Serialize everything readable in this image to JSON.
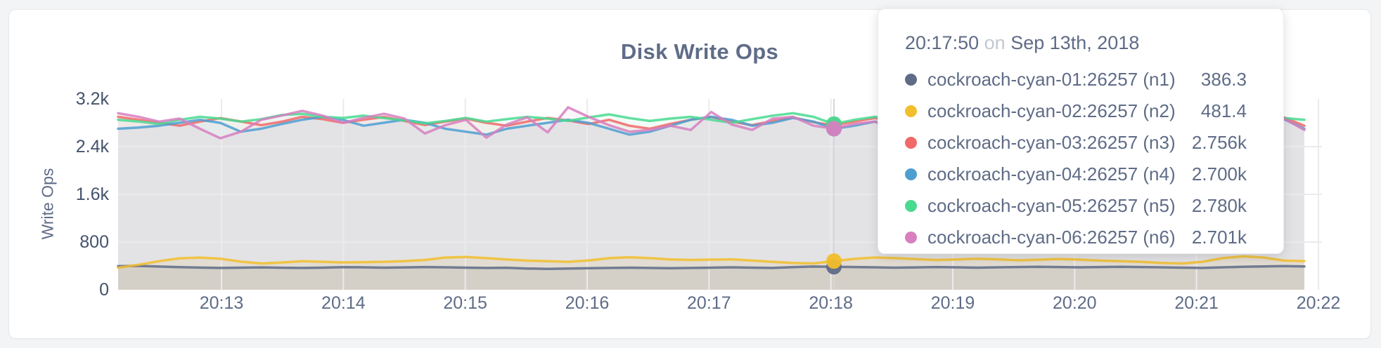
{
  "card": {
    "title": "Disk Write Ops"
  },
  "chart_data": {
    "type": "line",
    "title": "Disk Write Ops",
    "xlabel": "",
    "ylabel": "Write Ops",
    "ylim": [
      0,
      3200
    ],
    "grid": true,
    "legend_position": "tooltip-overlay",
    "y_ticks": [
      0,
      800,
      1600,
      2400,
      3200
    ],
    "y_tick_labels": [
      "0",
      "800",
      "1.6k",
      "2.4k",
      "3.2k"
    ],
    "x_tick_labels": [
      "20:13",
      "20:14",
      "20:15",
      "20:16",
      "20:17",
      "20:18",
      "20:19",
      "20:20",
      "20:21",
      "20:22"
    ],
    "x_start": "20:12:00",
    "x_interval_seconds": 10,
    "hover": {
      "index": 35,
      "time": "20:17:50",
      "date": "Sep 13th, 2018",
      "values": [
        386.3,
        481.4,
        2756,
        2700,
        2780,
        2701
      ]
    },
    "series": [
      {
        "name": "cockroach-cyan-01:26257 (n1)",
        "color": "#5F6C87",
        "values": [
          395,
          400,
          390,
          380,
          372,
          366,
          371,
          375,
          370,
          366,
          371,
          380,
          376,
          371,
          375,
          381,
          376,
          371,
          366,
          370,
          356,
          351,
          356,
          361,
          366,
          371,
          366,
          361,
          366,
          371,
          376,
          371,
          366,
          380,
          390,
          386.3,
          381,
          376,
          371,
          375,
          381,
          376,
          371,
          376,
          381,
          386,
          381,
          376,
          381,
          386,
          381,
          376,
          371,
          366,
          376,
          386,
          391,
          396,
          391
        ]
      },
      {
        "name": "cockroach-cyan-02:26257 (n2)",
        "color": "#F2BE2C",
        "values": [
          370,
          420,
          480,
          528,
          540,
          521,
          472,
          441,
          458,
          480,
          470,
          459,
          464,
          470,
          481,
          500,
          541,
          551,
          530,
          509,
          490,
          479,
          470,
          491,
          530,
          546,
          531,
          509,
          500,
          506,
          510,
          490,
          470,
          450,
          441,
          481.4,
          519,
          541,
          530,
          514,
          500,
          509,
          520,
          511,
          495,
          505,
          516,
          506,
          490,
          480,
          470,
          451,
          441,
          470,
          530,
          560,
          541,
          490,
          481
        ]
      },
      {
        "name": "cockroach-cyan-03:26257 (n3)",
        "color": "#F16969",
        "values": [
          2900,
          2852,
          2801,
          2750,
          2820,
          2879,
          2822,
          2760,
          2819,
          2900,
          2861,
          2800,
          2850,
          2899,
          2831,
          2762,
          2820,
          2871,
          2800,
          2751,
          2820,
          2881,
          2840,
          2779,
          2850,
          2750,
          2700,
          2781,
          2851,
          2899,
          2820,
          2760,
          2831,
          2890,
          2810,
          2756,
          2820,
          2879,
          2821,
          2750,
          2800,
          2861,
          2800,
          2741,
          2801,
          2870,
          2820,
          2761,
          2800,
          2851,
          2800,
          2750,
          2811,
          2870,
          2899,
          2820,
          2761,
          2890,
          2750
        ]
      },
      {
        "name": "cockroach-cyan-04:26257 (n4)",
        "color": "#4E9FD1",
        "values": [
          2700,
          2721,
          2750,
          2800,
          2851,
          2799,
          2650,
          2701,
          2780,
          2851,
          2900,
          2849,
          2750,
          2801,
          2850,
          2799,
          2700,
          2651,
          2601,
          2700,
          2751,
          2800,
          2850,
          2799,
          2700,
          2601,
          2650,
          2750,
          2851,
          2900,
          2849,
          2750,
          2800,
          2881,
          2820,
          2700,
          2751,
          2820,
          2761,
          2701,
          2779,
          2850,
          2801,
          2721,
          2760,
          2821,
          2779,
          2700,
          2741,
          2800,
          2761,
          2700,
          2820,
          2881,
          2801,
          2741,
          2700,
          2861,
          2700
        ]
      },
      {
        "name": "cockroach-cyan-05:26257 (n5)",
        "color": "#49D990",
        "values": [
          2850,
          2821,
          2780,
          2851,
          2900,
          2871,
          2820,
          2861,
          2930,
          2951,
          2900,
          2881,
          2920,
          2879,
          2841,
          2790,
          2830,
          2881,
          2820,
          2861,
          2900,
          2871,
          2830,
          2891,
          2941,
          2879,
          2830,
          2871,
          2900,
          2851,
          2800,
          2861,
          2920,
          2961,
          2900,
          2780,
          2851,
          2900,
          2861,
          2820,
          2871,
          2911,
          2850,
          2801,
          2850,
          2900,
          2871,
          2820,
          2861,
          2900,
          2841,
          2800,
          2850,
          2891,
          2930,
          2871,
          2831,
          2880,
          2851
        ]
      },
      {
        "name": "cockroach-cyan-06:26257 (n6)",
        "color": "#D77FBF",
        "values": [
          2960,
          2900,
          2820,
          2871,
          2700,
          2540,
          2651,
          2850,
          2921,
          3000,
          2920,
          2800,
          2881,
          2950,
          2870,
          2620,
          2761,
          2850,
          2550,
          2771,
          2890,
          2640,
          3060,
          2900,
          2760,
          2650,
          2681,
          2750,
          2680,
          2981,
          2770,
          2680,
          2871,
          2900,
          2750,
          2701,
          2780,
          2821,
          2640,
          2700,
          2751,
          2660,
          2720,
          2800,
          2851,
          2780,
          2650,
          2700,
          2900,
          2780,
          2650,
          2601,
          2680,
          2820,
          2760,
          2700,
          2651,
          2870,
          2680
        ]
      }
    ]
  },
  "tooltip": {
    "time": "20:17:50",
    "connector": "on",
    "date": "Sep 13th, 2018",
    "rows": [
      {
        "label": "cockroach-cyan-01:26257 (n1)",
        "value": "386.3",
        "color": "#5F6C87"
      },
      {
        "label": "cockroach-cyan-02:26257 (n2)",
        "value": "481.4",
        "color": "#F2BE2C"
      },
      {
        "label": "cockroach-cyan-03:26257 (n3)",
        "value": "2.756k",
        "color": "#F16969"
      },
      {
        "label": "cockroach-cyan-04:26257 (n4)",
        "value": "2.700k",
        "color": "#4E9FD1"
      },
      {
        "label": "cockroach-cyan-05:26257 (n5)",
        "value": "2.780k",
        "color": "#49D990"
      },
      {
        "label": "cockroach-cyan-06:26257 (n6)",
        "value": "2.701k",
        "color": "#D77FBF"
      }
    ]
  },
  "colors": {
    "page_background": "#f3f4f5",
    "card_background": "#ffffff",
    "accent_text": "#5F6C87",
    "gridline": "#ebebed",
    "hover_guideline": "#d4d6d9"
  }
}
